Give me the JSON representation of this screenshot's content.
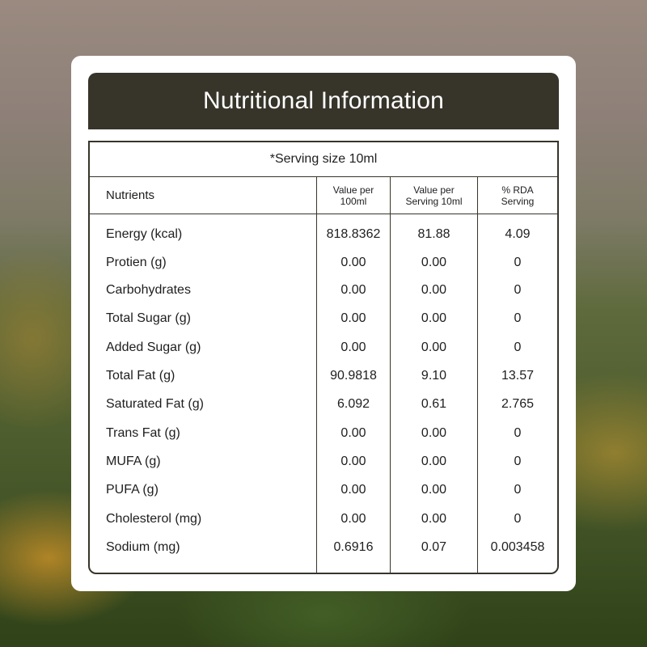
{
  "title": "Nutritional Information",
  "serving_note": "*Serving size 10ml",
  "columns": [
    "Nutrients",
    "Value per 100ml",
    "Value per Serving 10ml",
    "% RDA Serving"
  ],
  "rows": [
    {
      "nutrient": "Energy (kcal)",
      "per_100ml": "818.8362",
      "per_serving": "81.88",
      "rda": "4.09"
    },
    {
      "nutrient": "Protien (g)",
      "per_100ml": "0.00",
      "per_serving": "0.00",
      "rda": "0"
    },
    {
      "nutrient": "Carbohydrates",
      "per_100ml": "0.00",
      "per_serving": "0.00",
      "rda": "0"
    },
    {
      "nutrient": "Total Sugar (g)",
      "per_100ml": "0.00",
      "per_serving": "0.00",
      "rda": "0"
    },
    {
      "nutrient": "Added Sugar (g)",
      "per_100ml": "0.00",
      "per_serving": "0.00",
      "rda": "0"
    },
    {
      "nutrient": "Total Fat (g)",
      "per_100ml": "90.9818",
      "per_serving": "9.10",
      "rda": "13.57"
    },
    {
      "nutrient": "Saturated Fat (g)",
      "per_100ml": "6.092",
      "per_serving": "0.61",
      "rda": "2.765"
    },
    {
      "nutrient": "Trans Fat (g)",
      "per_100ml": "0.00",
      "per_serving": "0.00",
      "rda": "0"
    },
    {
      "nutrient": "MUFA (g)",
      "per_100ml": "0.00",
      "per_serving": "0.00",
      "rda": "0"
    },
    {
      "nutrient": "PUFA (g)",
      "per_100ml": "0.00",
      "per_serving": "0.00",
      "rda": "0"
    },
    {
      "nutrient": "Cholesterol (mg)",
      "per_100ml": "0.00",
      "per_serving": "0.00",
      "rda": "0"
    },
    {
      "nutrient": "Sodium (mg)",
      "per_100ml": "0.6916",
      "per_serving": "0.07",
      "rda": "0.003458"
    }
  ],
  "colors": {
    "header_bg": "#37342a",
    "card_bg": "#ffffff",
    "text": "#1e1e1e"
  }
}
